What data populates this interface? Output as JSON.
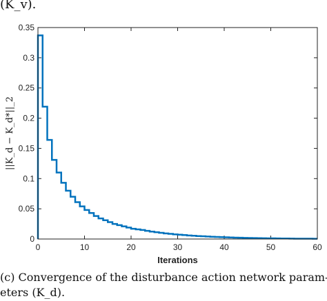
{
  "figure": {
    "top_caption": "(K_v).",
    "bottom_caption_line1": "(c) Convergence of the disturbance action network param-",
    "bottom_caption_line2": "eters (K_d)."
  },
  "chart_data": {
    "type": "line",
    "style": "stairs",
    "title": "",
    "xlabel": "Iterations",
    "ylabel": "||K_d − K_d*||_2",
    "xlim": [
      0,
      60
    ],
    "ylim": [
      0,
      0.35
    ],
    "xticks": [
      0,
      10,
      20,
      30,
      40,
      50,
      60
    ],
    "yticks": [
      0,
      0.05,
      0.1,
      0.15,
      0.2,
      0.25,
      0.3,
      0.35
    ],
    "grid": false,
    "legend": "none",
    "color": "#0072BD",
    "series": [
      {
        "x": [
          0,
          1,
          2,
          3,
          4,
          5,
          6,
          7,
          8,
          9,
          10,
          11,
          12,
          13,
          14,
          15,
          16,
          17,
          18,
          19,
          20,
          21,
          22,
          23,
          24,
          25,
          26,
          27,
          28,
          29,
          30,
          31,
          32,
          33,
          34,
          35,
          36,
          37,
          38,
          39,
          40,
          41,
          42,
          43,
          44,
          45,
          46,
          47,
          48,
          49,
          50,
          51,
          52,
          53,
          54,
          55,
          56,
          57,
          58,
          59,
          60
        ],
        "y": [
          0.337,
          0.219,
          0.164,
          0.131,
          0.11,
          0.093,
          0.08,
          0.07,
          0.061,
          0.054,
          0.048,
          0.043,
          0.038,
          0.034,
          0.031,
          0.028,
          0.025,
          0.023,
          0.021,
          0.019,
          0.017,
          0.016,
          0.015,
          0.0135,
          0.0123,
          0.0112,
          0.0102,
          0.0093,
          0.0085,
          0.0077,
          0.0071,
          0.0065,
          0.0059,
          0.0054,
          0.0049,
          0.0045,
          0.0041,
          0.0037,
          0.0034,
          0.0031,
          0.0028,
          0.0026,
          0.0023,
          0.0021,
          0.0019,
          0.0017,
          0.0016,
          0.0014,
          0.0013,
          0.0012,
          0.0011,
          0.001,
          0.0009,
          0.0008,
          0.0007,
          0.0006,
          0.0006,
          0.0005,
          0.0005,
          0.0004,
          0.0004
        ]
      }
    ]
  }
}
